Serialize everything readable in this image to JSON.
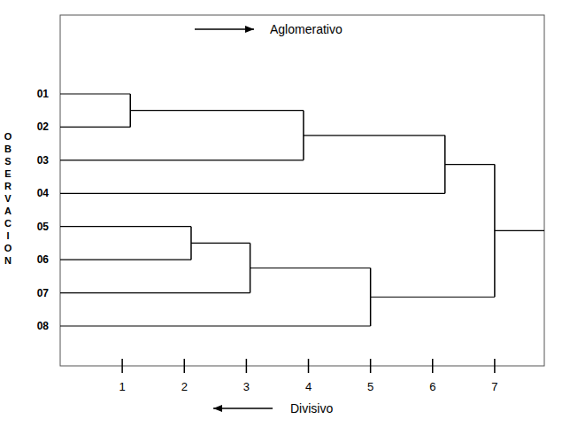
{
  "chart_data": {
    "type": "dendrogram",
    "orientation": "horizontal",
    "y_label": "OBSERVACION",
    "annotations": [
      "Aglomerativo",
      "Divisivo"
    ],
    "xlim": [
      0,
      7.8
    ],
    "xticks": [
      1,
      2,
      3,
      4,
      5,
      6,
      7
    ],
    "color": "#000000",
    "tree": {
      "height": 7.0,
      "children": [
        {
          "height": 6.2,
          "children": [
            {
              "height": 3.92,
              "children": [
                {
                  "height": 1.13,
                  "children": [
                    "01",
                    "02"
                  ]
                },
                "03"
              ]
            },
            "04"
          ]
        },
        {
          "height": 5.0,
          "children": [
            {
              "height": 3.06,
              "children": [
                {
                  "height": 2.11,
                  "children": [
                    "05",
                    "06"
                  ]
                },
                "07"
              ]
            },
            "08"
          ]
        }
      ]
    }
  }
}
